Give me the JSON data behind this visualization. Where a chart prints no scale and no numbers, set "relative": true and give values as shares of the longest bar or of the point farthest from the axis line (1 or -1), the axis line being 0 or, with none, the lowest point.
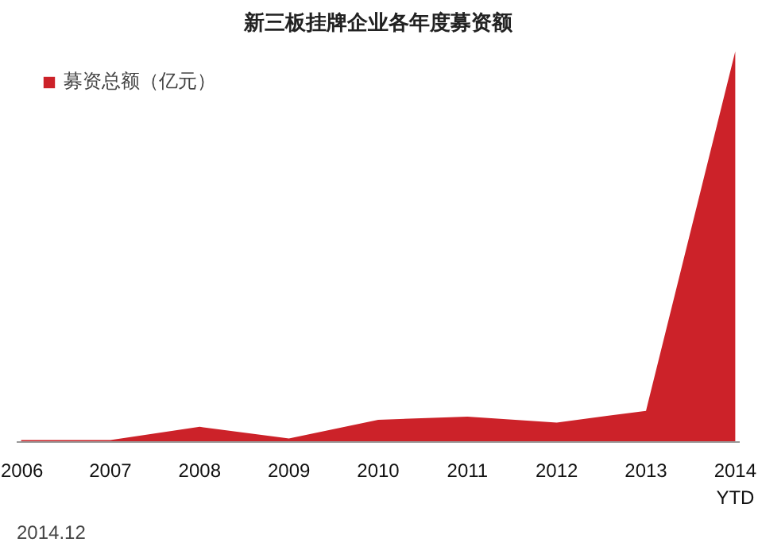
{
  "chart_data": {
    "type": "area",
    "title": "新三板挂牌企业各年度募资额",
    "categories": [
      "2006",
      "2007",
      "2008",
      "2009",
      "2010",
      "2011",
      "2012",
      "2013",
      "2014\nYTD"
    ],
    "relative": true,
    "series": [
      {
        "name": "募资总额（亿元）",
        "color": "#cc2229",
        "values": [
          0.005,
          0.005,
          0.039,
          0.009,
          0.057,
          0.065,
          0.05,
          0.08,
          1
        ]
      }
    ],
    "legend": "top left",
    "grid": false,
    "annotations": [
      "2014.12"
    ]
  }
}
